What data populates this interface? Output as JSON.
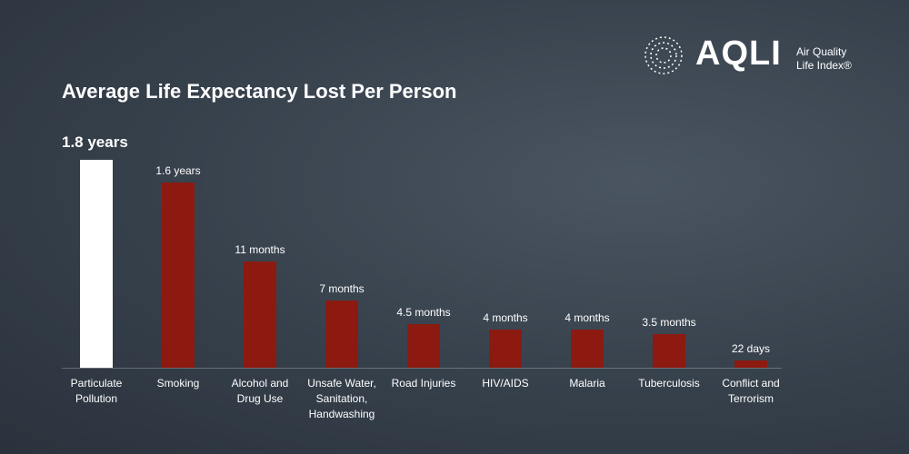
{
  "chart_data": {
    "type": "bar",
    "title": "Average Life Expectancy Lost Per Person",
    "logo": {
      "name": "AQLI",
      "line1": "Air Quality",
      "line2": "Life Index®"
    },
    "categories": [
      "Particulate Pollution",
      "Smoking",
      "Alcohol and Drug Use",
      "Unsafe Water, Sanitation, Handwashing",
      "Road Injuries",
      "HIV/AIDS",
      "Malaria",
      "Tuberculosis",
      "Conflict and Terrorism"
    ],
    "values": [
      1.8,
      1.6,
      0.9167,
      0.5833,
      0.375,
      0.3333,
      0.3333,
      0.2917,
      0.0603
    ],
    "value_labels": [
      "1.8 years",
      "1.6 years",
      "11 months",
      "7 months",
      "4.5 months",
      "4 months",
      "4 months",
      "3.5 months",
      "22 days"
    ],
    "colors": [
      "#ffffff",
      "#8c1a10",
      "#8c1a10",
      "#8c1a10",
      "#8c1a10",
      "#8c1a10",
      "#8c1a10",
      "#8c1a10",
      "#8c1a10"
    ]
  }
}
